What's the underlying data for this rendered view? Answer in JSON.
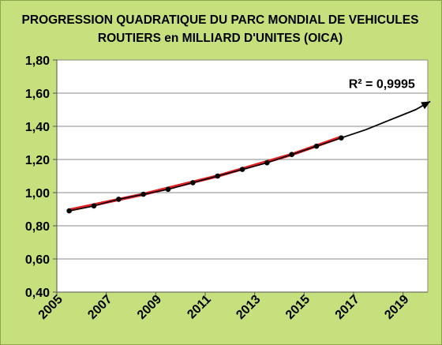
{
  "chart_data": {
    "type": "line",
    "title_line1": "PROGRESSION  QUADRATIQUE DU PARC MONDIAL DE VEHICULES",
    "title_line2": "ROUTIERS en MILLIARD D'UNITES (OICA)",
    "xlabel": "",
    "ylabel": "",
    "xlim": [
      2005,
      2020
    ],
    "ylim": [
      0.4,
      1.8
    ],
    "y_ticks": [
      "0,40",
      "0,60",
      "0,80",
      "1,00",
      "1,20",
      "1,40",
      "1,60",
      "1,80"
    ],
    "x_ticks": [
      "2005",
      "2007",
      "2009",
      "2011",
      "2013",
      "2015",
      "2017",
      "2019"
    ],
    "grid": "horizontal",
    "legend": "none",
    "series": [
      {
        "x": [
          2005.5,
          2006.5,
          2007.5,
          2008.5,
          2009.5,
          2010.5,
          2011.5,
          2012.5,
          2013.5,
          2014.5,
          2015.5,
          2016.5
        ],
        "y": [
          0.89,
          0.92,
          0.96,
          0.99,
          1.02,
          1.06,
          1.1,
          1.14,
          1.18,
          1.23,
          1.28,
          1.33
        ],
        "color": "#000000"
      },
      {
        "x": [
          2005.5,
          2008.5,
          2011.5,
          2014.5,
          2016.5
        ],
        "y": [
          0.895,
          0.99,
          1.1,
          1.23,
          1.335
        ],
        "color": "#e02020"
      }
    ],
    "trendline": {
      "x": [
        2005.5,
        2006.5,
        2007.5,
        2008.5,
        2009.5,
        2010.5,
        2011.5,
        2012.5,
        2013.5,
        2014.5,
        2015.5,
        2016.5,
        2017.5,
        2018.5,
        2019.5,
        2020.1
      ],
      "y": [
        0.89,
        0.92,
        0.96,
        0.99,
        1.02,
        1.06,
        1.1,
        1.14,
        1.18,
        1.23,
        1.28,
        1.33,
        1.38,
        1.44,
        1.5,
        1.55
      ],
      "color": "#000000"
    },
    "annotations": [
      {
        "text": "R² = 0,9995",
        "x": 2016.8,
        "y": 1.63
      }
    ]
  }
}
